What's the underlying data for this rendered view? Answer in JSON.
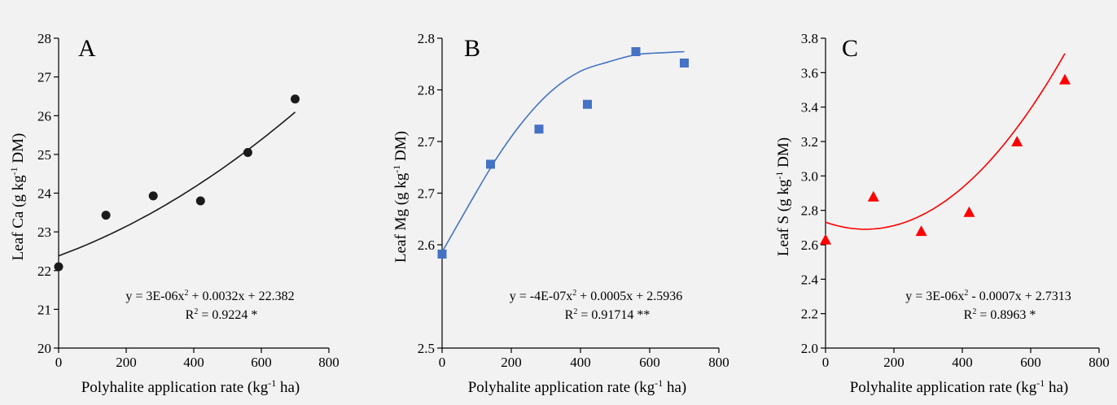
{
  "chart_data": [
    {
      "type": "scatter",
      "panel_label": "A",
      "xlabel_main": "Polyhalite application rate (kg",
      "xlabel_sup": "-1",
      "xlabel_end": " ha)",
      "ylabel_main": "Leaf Ca  (g kg",
      "ylabel_sup": "-1",
      "ylabel_end": " DM)",
      "xlim": [
        0,
        800
      ],
      "ylim": [
        20,
        28
      ],
      "xticks": [
        0,
        200,
        400,
        600,
        800
      ],
      "xtick_labels": [
        "0",
        "200",
        "400",
        "600",
        "800"
      ],
      "yticks": [
        20,
        21,
        22,
        23,
        24,
        25,
        26,
        27,
        28
      ],
      "ytick_labels": [
        "20",
        "21",
        "22",
        "23",
        "24",
        "25",
        "26",
        "27",
        "28"
      ],
      "marker": "circle",
      "color": "#1a1a1a",
      "x": [
        0,
        140,
        280,
        420,
        560,
        700
      ],
      "y": [
        22.1,
        23.43,
        23.93,
        23.8,
        25.05,
        26.43
      ],
      "fit": {
        "a": 3e-06,
        "b": 0.0032,
        "c": 22.382,
        "x_range": [
          0,
          700
        ]
      },
      "equation_main": "y = 3E-06x",
      "equation_end": " + 0.0032x + 22.382",
      "r2_main": "R",
      "r2_end": " = 0.9224 *"
    },
    {
      "type": "scatter",
      "panel_label": "B",
      "xlabel_main": "Polyhalite application rate (kg",
      "xlabel_sup": "-1",
      "xlabel_end": " ha)",
      "ylabel_main": "Leaf Mg (g kg",
      "ylabel_sup": "-1",
      "ylabel_end": " DM)",
      "xlim": [
        0,
        800
      ],
      "ylim": [
        2.5,
        2.8
      ],
      "xticks": [
        0,
        200,
        400,
        600,
        800
      ],
      "xtick_labels": [
        "0",
        "200",
        "400",
        "600",
        "800"
      ],
      "yticks": [
        2.5,
        2.6,
        2.65,
        2.7,
        2.75,
        2.8
      ],
      "ytick_labels": [
        "2.5",
        "2.6",
        "2.7",
        "2.7",
        "2.8",
        "2.8"
      ],
      "marker": "square",
      "color": "#4472c4",
      "x": [
        0,
        140,
        280,
        420,
        560,
        700
      ],
      "y": [
        2.591,
        2.678,
        2.712,
        2.736,
        2.787,
        2.776
      ],
      "fit_points": [
        [
          0,
          2.593
        ],
        [
          80,
          2.64
        ],
        [
          160,
          2.685
        ],
        [
          240,
          2.722
        ],
        [
          320,
          2.75
        ],
        [
          400,
          2.768
        ],
        [
          480,
          2.777
        ],
        [
          560,
          2.784
        ],
        [
          640,
          2.786
        ],
        [
          700,
          2.787
        ]
      ],
      "equation_main": "y =  -4E-07x",
      "equation_end": " + 0.0005x + 2.5936",
      "r2_main": "R",
      "r2_end": " = 0.91714 **"
    },
    {
      "type": "scatter",
      "panel_label": "C",
      "xlabel_main": "Polyhalite application rate (kg",
      "xlabel_sup": "-1",
      "xlabel_end": " ha)",
      "ylabel_main": "Leaf S (g kg",
      "ylabel_sup": "-1",
      "ylabel_end": " DM)",
      "xlim": [
        0,
        800
      ],
      "ylim": [
        2.0,
        3.8
      ],
      "xticks": [
        0,
        200,
        400,
        600,
        800
      ],
      "xtick_labels": [
        "0",
        "200",
        "400",
        "600",
        "800"
      ],
      "yticks": [
        2.0,
        2.2,
        2.4,
        2.6,
        2.8,
        3.0,
        3.2,
        3.4,
        3.6,
        3.8
      ],
      "ytick_labels": [
        "2.0",
        "2.2",
        "2.4",
        "2.6",
        "2.8",
        "3.0",
        "3.2",
        "3.4",
        "3.6",
        "3.8"
      ],
      "marker": "triangle",
      "color": "#ff0000",
      "x": [
        0,
        140,
        280,
        420,
        560,
        700
      ],
      "y": [
        2.63,
        2.88,
        2.68,
        2.79,
        3.2,
        3.56
      ],
      "fit": {
        "a": 3e-06,
        "b": -0.0007,
        "c": 2.7313,
        "x_range": [
          0,
          700
        ]
      },
      "equation_main": "y = 3E-06x",
      "equation_end": " - 0.0007x + 2.7313",
      "r2_main": "R",
      "r2_end": " = 0.8963 *"
    }
  ]
}
